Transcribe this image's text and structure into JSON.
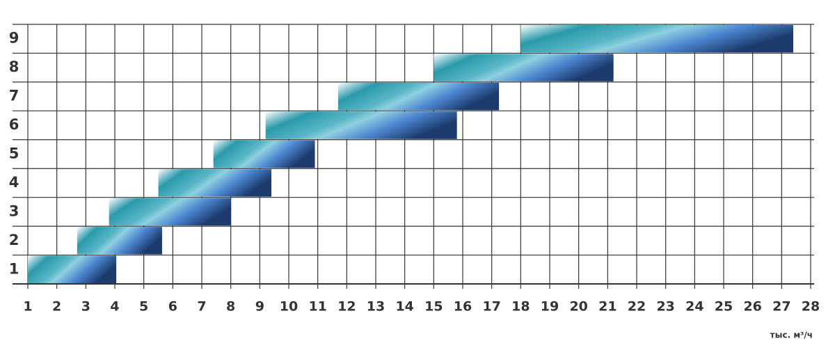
{
  "chart_data": {
    "type": "range-bar",
    "categories": [
      "1",
      "2",
      "3",
      "4",
      "5",
      "6",
      "7",
      "8",
      "9"
    ],
    "starts": [
      1.0,
      2.7,
      3.8,
      5.5,
      7.4,
      9.2,
      11.7,
      15.0,
      18.0
    ],
    "ends": [
      4.05,
      5.63,
      8.0,
      9.4,
      10.9,
      15.8,
      17.25,
      21.2,
      27.4
    ],
    "xlim": [
      1,
      28
    ],
    "xticks": [
      1,
      2,
      3,
      4,
      5,
      6,
      7,
      8,
      9,
      10,
      11,
      12,
      13,
      14,
      15,
      16,
      17,
      18,
      19,
      20,
      21,
      22,
      23,
      24,
      25,
      26,
      27,
      28
    ],
    "x_label": "тыс. м³/ч",
    "grid": true
  }
}
